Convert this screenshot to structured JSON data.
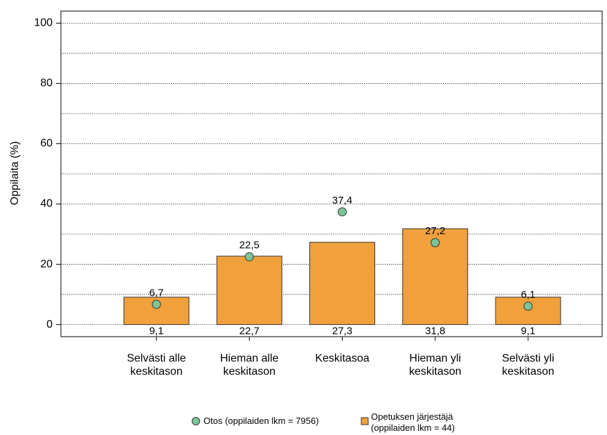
{
  "chart_data": {
    "type": "bar",
    "y_label": "Oppilaita (%)",
    "categories": [
      [
        "Selvästi alle",
        "keskitason"
      ],
      [
        "Hieman alle",
        "keskitason"
      ],
      [
        "Keskitasoa"
      ],
      [
        "Hieman yli",
        "keskitason"
      ],
      [
        "Selvästi yli",
        "keskitason"
      ]
    ],
    "series": [
      {
        "name": "Otos (oppilaiden lkm = 7956)",
        "type": "point",
        "color": "#7dc596",
        "values": [
          6.7,
          22.5,
          37.4,
          27.2,
          6.1
        ],
        "value_labels": [
          "6,7",
          "22,5",
          "37,4",
          "27,2",
          "6,1"
        ]
      },
      {
        "name": "Opetuksen järjestäjä (oppilaiden lkm = 44)",
        "type": "bar",
        "color": "#f0a13c",
        "values": [
          9.1,
          22.7,
          27.3,
          31.8,
          9.1
        ],
        "value_labels": [
          "9,1",
          "22,7",
          "27,3",
          "31,8",
          "9,1"
        ]
      }
    ],
    "ylim": [
      -4,
      104
    ],
    "yticks": [
      0,
      20,
      40,
      60,
      80,
      100
    ],
    "ygrid": [
      0,
      10,
      20,
      30,
      40,
      50,
      60,
      70,
      80,
      90,
      100
    ],
    "grid": true
  }
}
